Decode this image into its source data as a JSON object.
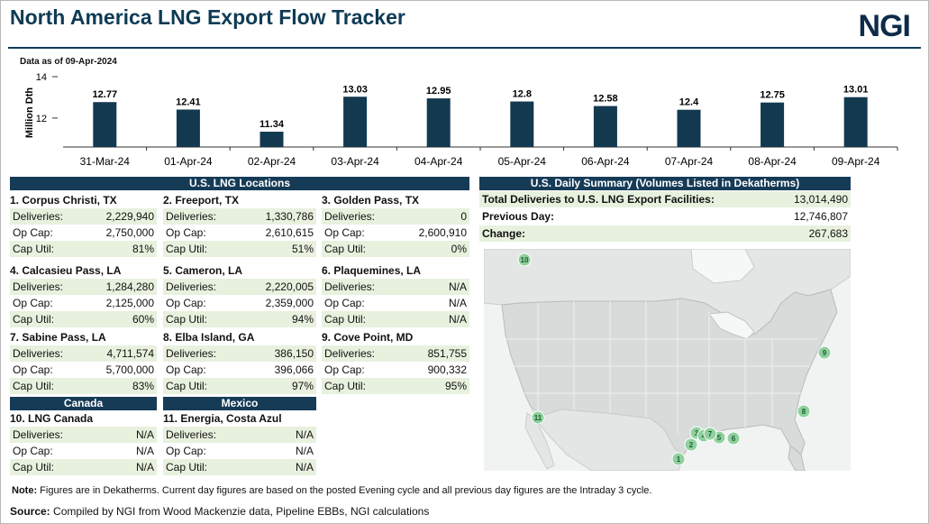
{
  "header": {
    "title": "North America LNG Export Flow Tracker",
    "logo_text": "NGI",
    "as_of": "Data as of 09-Apr-2024"
  },
  "chart_data": {
    "type": "bar",
    "ylabel": "Million Dth",
    "ylim": [
      10.6,
      14
    ],
    "yticks": [
      12,
      14
    ],
    "categories": [
      "31-Mar-24",
      "01-Apr-24",
      "02-Apr-24",
      "03-Apr-24",
      "04-Apr-24",
      "05-Apr-24",
      "06-Apr-24",
      "07-Apr-24",
      "08-Apr-24",
      "09-Apr-24"
    ],
    "values": [
      12.77,
      12.41,
      11.34,
      13.03,
      12.95,
      12.8,
      12.58,
      12.4,
      12.75,
      13.01
    ],
    "value_labels": [
      "12.77",
      "12.41",
      "11.34",
      "13.03",
      "12.95",
      "12.8",
      "12.58",
      "12.4",
      "12.75",
      "13.01"
    ],
    "bar_color": "#12394f"
  },
  "us_locations": {
    "heading": "U.S. LNG Locations",
    "labels": {
      "deliveries": "Deliveries:",
      "op_cap": "Op Cap:",
      "cap_util": "Cap Util:"
    },
    "items": [
      {
        "name": "1. Corpus Christi, TX",
        "deliveries": "2,229,940",
        "op_cap": "2,750,000",
        "cap_util": "81%"
      },
      {
        "name": "2. Freeport, TX",
        "deliveries": "1,330,786",
        "op_cap": "2,610,615",
        "cap_util": "51%"
      },
      {
        "name": "3. Golden Pass, TX",
        "deliveries": "0",
        "op_cap": "2,600,910",
        "cap_util": "0%"
      },
      {
        "name": "4. Calcasieu Pass, LA",
        "deliveries": "1,284,280",
        "op_cap": "2,125,000",
        "cap_util": "60%"
      },
      {
        "name": "5. Cameron, LA",
        "deliveries": "2,220,005",
        "op_cap": "2,359,000",
        "cap_util": "94%"
      },
      {
        "name": "6. Plaquemines, LA",
        "deliveries": "N/A",
        "op_cap": "N/A",
        "cap_util": "N/A"
      },
      {
        "name": "7. Sabine Pass, LA",
        "deliveries": "4,711,574",
        "op_cap": "5,700,000",
        "cap_util": "83%"
      },
      {
        "name": "8. Elba Island, GA",
        "deliveries": "386,150",
        "op_cap": "396,066",
        "cap_util": "97%"
      },
      {
        "name": "9. Cove Point, MD",
        "deliveries": "851,755",
        "op_cap": "900,332",
        "cap_util": "95%"
      }
    ]
  },
  "canada": {
    "heading": "Canada",
    "item": {
      "name": "10. LNG Canada",
      "deliveries": "N/A",
      "op_cap": "N/A",
      "cap_util": "N/A"
    }
  },
  "mexico": {
    "heading": "Mexico",
    "item": {
      "name": "11. Energia, Costa Azul",
      "deliveries": "N/A",
      "op_cap": "N/A",
      "cap_util": "N/A"
    }
  },
  "summary": {
    "heading": "U.S. Daily Summary (Volumes Listed in Dekatherms)",
    "total_label": "Total Deliveries to U.S. LNG Export Facilities:",
    "total_value": "13,014,490",
    "prev_label": "Previous Day:",
    "prev_value": "12,746,807",
    "change_label": "Change:",
    "change_value": "267,683"
  },
  "map": {
    "marker_color": "#8fd19e",
    "markers": [
      "1",
      "2",
      "3",
      "4",
      "5",
      "6",
      "7",
      "8",
      "9",
      "10",
      "11"
    ]
  },
  "footer": {
    "note_label": "Note:",
    "note_text": " Figures are in Dekatherms.  Current day figures are based on the posted Evening cycle and all previous day figures are the Intraday 3 cycle.",
    "source_label": "Source:",
    "source_text": "  Compiled by NGI from Wood Mackenzie data, Pipeline EBBs, NGI calculations"
  }
}
